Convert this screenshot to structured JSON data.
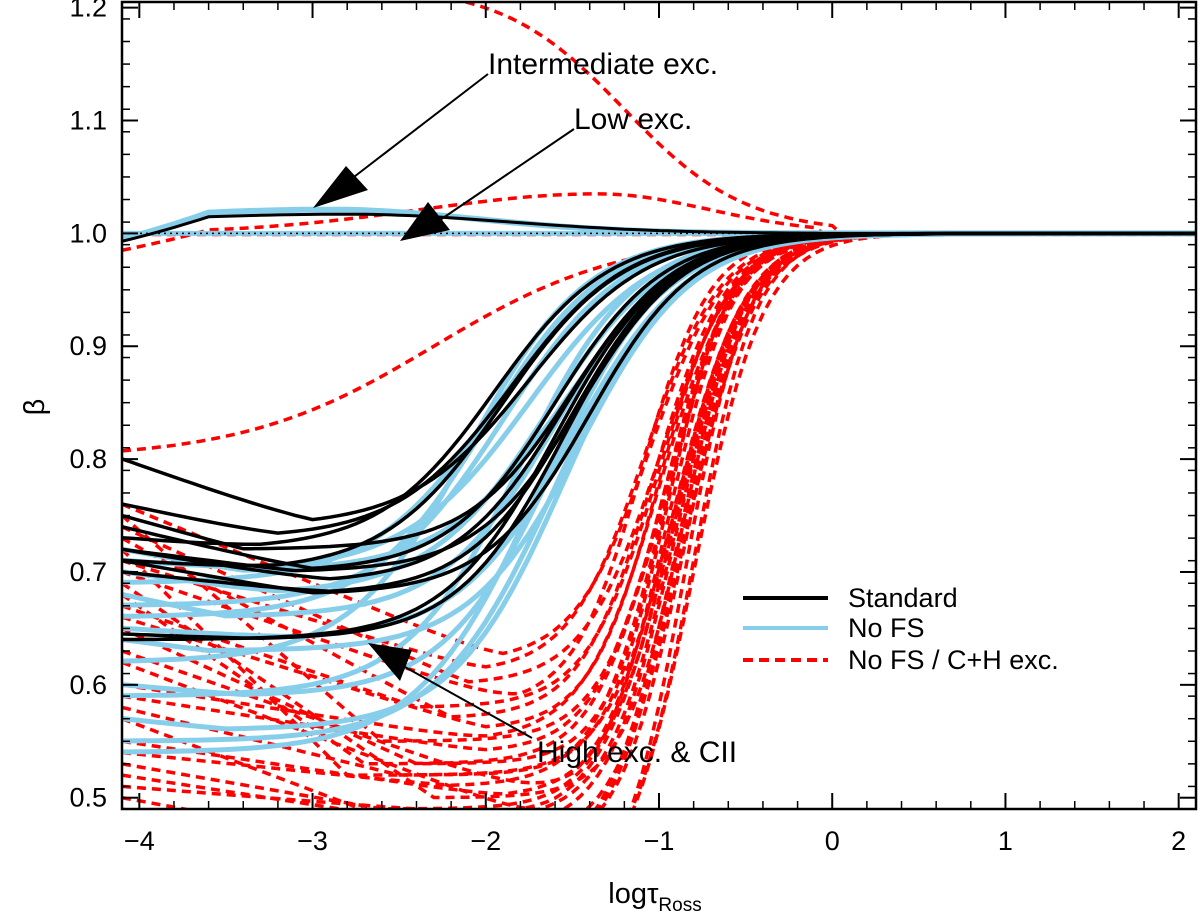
{
  "chart_data": {
    "type": "line",
    "title": "",
    "xlabel": "logτ",
    "xlabel_sub": "Ross",
    "ylabel": "β",
    "xlim": [
      -4.1,
      2.1
    ],
    "ylim": [
      0.49,
      1.205
    ],
    "xticks": [
      -4,
      -3,
      -2,
      -1,
      0,
      1,
      2
    ],
    "xtick_labels": [
      "−4",
      "−3",
      "−2",
      "−1",
      "0",
      "1",
      "2"
    ],
    "yticks": [
      0.5,
      0.6,
      0.7,
      0.8,
      0.9,
      1.0,
      1.1,
      1.2
    ],
    "ytick_labels": [
      "0.5",
      "0.6",
      "0.7",
      "0.8",
      "0.9",
      "1.0",
      "1.1",
      "1.2"
    ],
    "reference_line": {
      "y": 1.0,
      "style": "dotted"
    },
    "colors": {
      "standard": "#000000",
      "nofs": "#87ceeb",
      "nofs_ch": "#ff0000"
    },
    "legend": {
      "placement": "lower-right",
      "entries": [
        {
          "label": "Standard",
          "style": "solid",
          "color": "#000000"
        },
        {
          "label": "No FS",
          "style": "solid",
          "color": "#87ceeb"
        },
        {
          "label": "No FS / C+H exc.",
          "style": "dashed",
          "color": "#ff0000"
        }
      ]
    },
    "annotations": [
      {
        "text": "Intermediate exc.",
        "arrow_to": [
          -3.0,
          1.015
        ]
      },
      {
        "text": "Low exc.",
        "arrow_to": [
          -2.5,
          1.0
        ]
      },
      {
        "text": "High exc. & CII",
        "arrow_to": [
          -2.75,
          0.645
        ]
      }
    ],
    "series": [
      {
        "name": "Standard",
        "count": 20,
        "x_points": [
          -4.1,
          -2.5,
          -1.5,
          -0.5,
          0.0,
          2.1
        ],
        "description": "thermalization curves, beta≈0.64–0.80 at logτ=-4, minimum ~0.68–0.75 near logτ=-3, rising to 1.0 by logτ=0; one line slightly above 1 (≈1.017) near logτ=-3"
      },
      {
        "name": "No FS",
        "count": 20,
        "description": "beta≈0.54–0.72 at logτ=-4, rising to 1.0 by logτ=0; one line ≈1.02 near logτ=-3"
      },
      {
        "name": "No FS / C+H exc.",
        "count": 40,
        "description": "beta from ≤0.49 up to 0.80 at logτ=-4, steep rise between logτ=-1.5 and 0; outliers up to 1.2 (intermediate exc.) and ≈1.03 (low exc.)"
      }
    ]
  }
}
